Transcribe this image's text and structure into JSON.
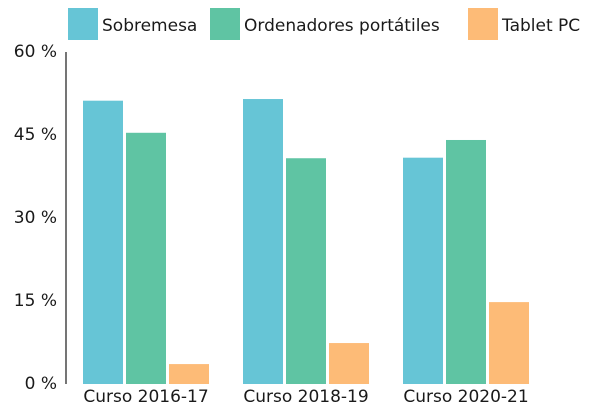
{
  "chart_data": {
    "type": "bar",
    "categories": [
      "Curso 2016-17",
      "Curso 2018-19",
      "Curso 2020-21"
    ],
    "series": [
      {
        "name": "Sobremesa",
        "color": "#66c5d6",
        "values": [
          51.2,
          51.5,
          40.9
        ]
      },
      {
        "name": "Ordenadores portátiles",
        "color": "#5fc4a3",
        "values": [
          45.4,
          40.8,
          44.1
        ]
      },
      {
        "name": "Tablet PC",
        "color": "#fdbb77",
        "values": [
          3.6,
          7.4,
          14.8
        ]
      }
    ],
    "ylim": [
      0,
      60
    ],
    "yticks": [
      {
        "value": 0,
        "label": "0 %"
      },
      {
        "value": 15,
        "label": "15 %"
      },
      {
        "value": 30,
        "label": "30 %"
      },
      {
        "value": 45,
        "label": "45 %"
      },
      {
        "value": 60,
        "label": "60 %"
      }
    ],
    "grid": false,
    "legend": "top"
  }
}
